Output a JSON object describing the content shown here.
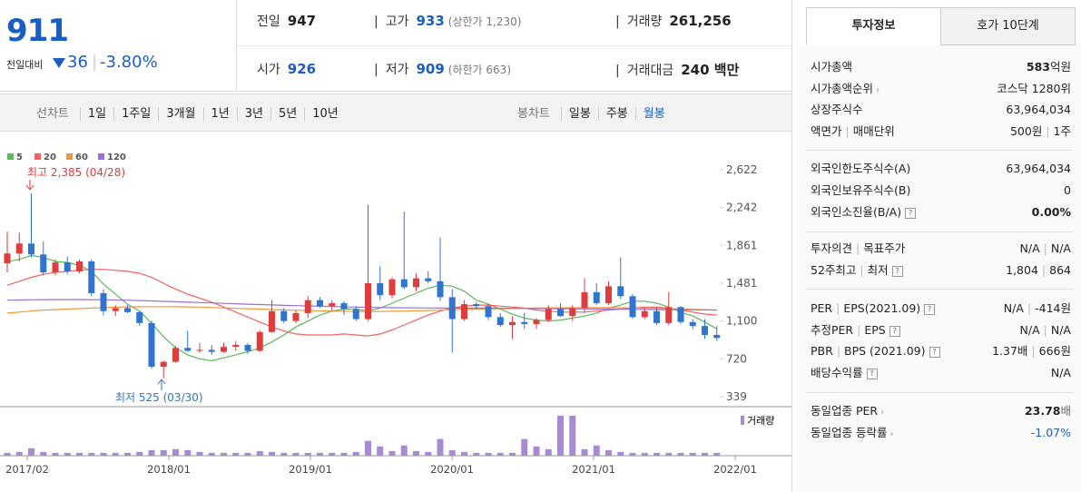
{
  "quote": {
    "price": "911",
    "change_label": "전일대비",
    "change": "36",
    "change_pct": "-3.80%"
  },
  "stats": [
    {
      "label": "전일",
      "value": "947"
    },
    {
      "label": "고가",
      "value": "933",
      "extra": "(상한가 1,230)"
    },
    {
      "label": "거래량",
      "value": "261,256"
    },
    {
      "label": "시가",
      "value": "926"
    },
    {
      "label": "저가",
      "value": "909",
      "extra": "(하한가 663)"
    },
    {
      "label": "거래대금",
      "value": "240 백만"
    }
  ],
  "toolbar": {
    "line_label": "선차트",
    "line_periods": [
      "1일",
      "1주일",
      "3개월",
      "1년",
      "3년",
      "5년",
      "10년"
    ],
    "candle_label": "봉차트",
    "candle_periods": [
      "일봉",
      "주봉",
      "월봉"
    ]
  },
  "chart_data": {
    "type": "candlestick",
    "up_color": "#e23b3b",
    "down_color": "#2f74d0",
    "ylim": [
      339,
      2622
    ],
    "yticks": [
      {
        "value": 2622,
        "label": "2,622"
      },
      {
        "value": 2242,
        "label": "2,242"
      },
      {
        "value": 1861,
        "label": "1,861"
      },
      {
        "value": 1481,
        "label": "1,481"
      },
      {
        "value": 1100,
        "label": "1,100"
      },
      720,
      339
    ],
    "x_labels": [
      "2017/02",
      "2018/01",
      "2019/01",
      "2020/01",
      "2021/01",
      "2022/01"
    ],
    "open": [
      1680,
      1780,
      1880,
      1770,
      1590,
      1690,
      1600,
      1700,
      1380,
      1200,
      1230,
      1190,
      1080,
      640,
      690,
      830,
      800,
      810,
      790,
      840,
      860,
      800,
      990,
      1200,
      1100,
      1180,
      1310,
      1250,
      1280,
      1220,
      1120,
      1480,
      1360,
      1520,
      1440,
      1530,
      1500,
      1340,
      1120,
      1270,
      1250,
      1140,
      1060,
      1090,
      1070,
      1110,
      1220,
      1150,
      1230,
      1390,
      1280,
      1450,
      1350,
      1140,
      1200,
      1080,
      1240,
      1090,
      1050,
      960
    ],
    "high": [
      2000,
      1990,
      2385,
      1900,
      1720,
      1750,
      1720,
      1720,
      1420,
      1260,
      1260,
      1200,
      1100,
      700,
      850,
      1000,
      880,
      860,
      880,
      900,
      880,
      1010,
      1310,
      1230,
      1210,
      1350,
      1340,
      1310,
      1300,
      1250,
      2270,
      1650,
      1540,
      2200,
      1580,
      1600,
      1940,
      1420,
      1310,
      1290,
      1270,
      1180,
      1150,
      1180,
      1130,
      1260,
      1280,
      1260,
      1530,
      1480,
      1500,
      1740,
      1370,
      1230,
      1240,
      1390,
      1250,
      1120,
      1120,
      1050
    ],
    "low": [
      1590,
      1700,
      1740,
      1560,
      1560,
      1570,
      1580,
      1350,
      1160,
      1150,
      1180,
      1050,
      620,
      525,
      680,
      790,
      780,
      760,
      780,
      800,
      770,
      790,
      980,
      1080,
      1080,
      1130,
      1230,
      1200,
      1160,
      1100,
      1100,
      1310,
      1330,
      1420,
      1400,
      1480,
      1300,
      780,
      1100,
      1220,
      1110,
      1040,
      920,
      1020,
      1020,
      1090,
      1140,
      1100,
      1180,
      1260,
      1260,
      1320,
      1120,
      1120,
      1060,
      1060,
      1070,
      1020,
      920,
      900
    ],
    "close": [
      1780,
      1880,
      1770,
      1590,
      1690,
      1600,
      1700,
      1380,
      1200,
      1230,
      1190,
      1080,
      640,
      690,
      830,
      800,
      810,
      790,
      840,
      860,
      800,
      990,
      1200,
      1100,
      1180,
      1310,
      1250,
      1280,
      1220,
      1120,
      1480,
      1360,
      1520,
      1440,
      1530,
      1500,
      1340,
      1120,
      1270,
      1250,
      1140,
      1060,
      1090,
      1070,
      1110,
      1220,
      1150,
      1230,
      1390,
      1280,
      1450,
      1350,
      1140,
      1200,
      1080,
      1240,
      1090,
      1050,
      960,
      930
    ],
    "series": [
      {
        "name": "5",
        "color": "#5cb85c",
        "values": [
          1700,
          1720,
          1760,
          1740,
          1700,
          1690,
          1660,
          1600,
          1470,
          1370,
          1270,
          1200,
          1080,
          940,
          830,
          760,
          720,
          700,
          730,
          760,
          790,
          830,
          890,
          960,
          1040,
          1100,
          1160,
          1200,
          1220,
          1220,
          1200,
          1230,
          1280,
          1330,
          1380,
          1430,
          1460,
          1450,
          1400,
          1310,
          1270,
          1220,
          1170,
          1130,
          1110,
          1100,
          1110,
          1130,
          1150,
          1180,
          1230,
          1260,
          1300,
          1300,
          1280,
          1240,
          1190,
          1150,
          1090,
          1020
        ]
      },
      {
        "name": "20",
        "color": "#f26262",
        "values": [
          1460,
          1500,
          1540,
          1570,
          1590,
          1600,
          1610,
          1620,
          1620,
          1610,
          1600,
          1580,
          1540,
          1480,
          1420,
          1370,
          1330,
          1290,
          1240,
          1190,
          1140,
          1090,
          1040,
          1000,
          970,
          960,
          960,
          960,
          970,
          960,
          950,
          970,
          1010,
          1060,
          1110,
          1160,
          1200,
          1230,
          1250,
          1260,
          1260,
          1250,
          1240,
          1230,
          1210,
          1200,
          1190,
          1190,
          1190,
          1200,
          1210,
          1220,
          1230,
          1240,
          1240,
          1230,
          1210,
          1190,
          1170,
          1160
        ]
      },
      {
        "name": "60",
        "color": "#f3973a",
        "values": [
          1180,
          1190,
          1200,
          1210,
          1215,
          1220,
          1225,
          1230,
          1235,
          1240,
          1242,
          1244,
          1245,
          1245,
          1244,
          1242,
          1240,
          1236,
          1232,
          1228,
          1224,
          1220,
          1216,
          1212,
          1208,
          1205,
          1202,
          1200,
          1198,
          1196,
          1195,
          1196,
          1198,
          1200,
          1203,
          1206,
          1210,
          1214,
          1218,
          1220,
          1222,
          1224,
          1226,
          1228,
          1230,
          1232,
          1233,
          1234,
          1235,
          1235,
          1235,
          1234,
          1232,
          1230,
          1228,
          1225,
          1222,
          1218,
          1214,
          1210
        ]
      },
      {
        "name": "120",
        "color": "#9b6fd6",
        "values": [
          1310,
          1312,
          1314,
          1315,
          1316,
          1316,
          1316,
          1315,
          1314,
          1312,
          1310,
          1306,
          1302,
          1298,
          1294,
          1290,
          1286,
          1282,
          1278,
          1274,
          1270,
          1266,
          1262,
          1258,
          1255,
          1252,
          1249,
          1246,
          1243,
          1240,
          1238,
          1236,
          1234,
          1233,
          1232,
          1231,
          1230,
          1230,
          1230,
          1230,
          1230,
          1229,
          1228,
          1227,
          1226,
          1225,
          1224,
          1223,
          1222,
          1221,
          1220,
          1219,
          1218,
          1217,
          1216,
          1215,
          1214,
          1213,
          1212,
          1211
        ]
      }
    ],
    "volume": {
      "name": "거래량",
      "color": "#a68bd2",
      "values": [
        3,
        4,
        8,
        4,
        3,
        3,
        3,
        3,
        3,
        3,
        3,
        4,
        6,
        6,
        7,
        6,
        4,
        3,
        3,
        3,
        3,
        5,
        4,
        3,
        3,
        3,
        3,
        3,
        3,
        4,
        16,
        10,
        5,
        11,
        5,
        4,
        18,
        6,
        4,
        3,
        3,
        3,
        3,
        18,
        10,
        7,
        43,
        43,
        7,
        11,
        6,
        4,
        3,
        3,
        3,
        3,
        3,
        3,
        3,
        3
      ]
    },
    "annotations": [
      {
        "text": "최고 2,385 (04/28)",
        "color": "#e23b3b"
      },
      {
        "text": "최저 525 (03/30)",
        "color": "#2f74d0"
      }
    ]
  },
  "info": {
    "tabs": [
      "투자정보",
      "호가 10단계"
    ],
    "rows": [
      {
        "label": "시가총액",
        "value": "583",
        "unit": "억원"
      },
      {
        "label": "시가총액순위",
        "value": "코스닥 1280위"
      },
      {
        "label": "상장주식수",
        "value": "63,964,034"
      },
      {
        "label": "액면가",
        "label2": "매매단위",
        "value": "500원",
        "value2": "1주"
      },
      {
        "label": "외국인한도주식수(A)",
        "value": "63,964,034"
      },
      {
        "label": "외국인보유주식수(B)",
        "value": "0"
      },
      {
        "label": "외국인소진율(B/A)",
        "value": "0.00%"
      },
      {
        "label": "투자의견",
        "label2": "목표주가",
        "value": "N/A",
        "value2": "N/A"
      },
      {
        "label": "52주최고",
        "label2": "최저",
        "value": "1,804",
        "value2": "864"
      },
      {
        "label": "PER",
        "label2": "EPS(2021.09)",
        "value": "N/A",
        "value2": "-414원"
      },
      {
        "label": "추정PER",
        "label2": "EPS",
        "value": "N/A",
        "value2": "N/A"
      },
      {
        "label": "PBR",
        "label2": "BPS (2021.09)",
        "value": "1.37배",
        "value2": "666원"
      },
      {
        "label": "배당수익률",
        "value": "N/A"
      },
      {
        "label": "동일업종 PER",
        "value": "23.78",
        "unit": "배"
      },
      {
        "label": "동일업종 등락률",
        "value": "-1.07%"
      }
    ]
  }
}
